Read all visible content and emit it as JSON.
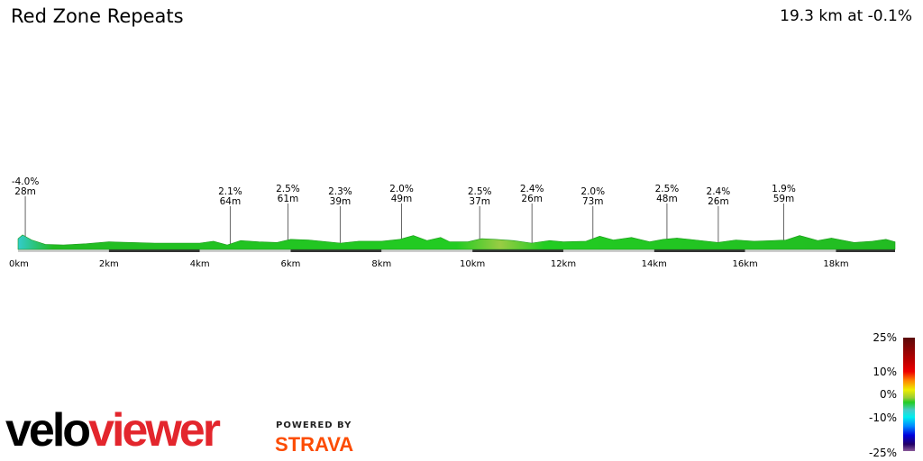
{
  "title": "Red Zone Repeats",
  "summary": "19.3 km at -0.1%",
  "chart_data": {
    "type": "area",
    "title": "Red Zone Repeats",
    "xlabel": "",
    "ylabel": "",
    "xlim": [
      0,
      19.3
    ],
    "x_ticks": [
      {
        "v": 0,
        "label": "0km"
      },
      {
        "v": 2,
        "label": "2km"
      },
      {
        "v": 4,
        "label": "4km"
      },
      {
        "v": 6,
        "label": "6km"
      },
      {
        "v": 8,
        "label": "8km"
      },
      {
        "v": 10,
        "label": "10km"
      },
      {
        "v": 12,
        "label": "12km"
      },
      {
        "v": 14,
        "label": "14km"
      },
      {
        "v": 16,
        "label": "16km"
      },
      {
        "v": 18,
        "label": "18km"
      }
    ],
    "elevation_km": [
      0,
      0.1,
      0.3,
      0.6,
      1,
      1.5,
      2,
      2.5,
      3,
      3.5,
      4,
      4.3,
      4.6,
      4.9,
      5.3,
      5.7,
      6,
      6.4,
      6.8,
      7.1,
      7.5,
      8,
      8.4,
      8.7,
      9,
      9.3,
      9.5,
      9.9,
      10.2,
      10.5,
      10.9,
      11.3,
      11.7,
      12,
      12.5,
      12.8,
      13.1,
      13.5,
      13.9,
      14.2,
      14.5,
      14.9,
      15.4,
      15.8,
      16.2,
      16.6,
      16.9,
      17.2,
      17.6,
      17.9,
      18.4,
      18.8,
      19.1,
      19.3
    ],
    "elevation_m": [
      32,
      38,
      30,
      23,
      22,
      24,
      27,
      26,
      25,
      25,
      25,
      28,
      22,
      29,
      27,
      26,
      31,
      30,
      27,
      25,
      28,
      28,
      31,
      37,
      29,
      34,
      27,
      27,
      32,
      31,
      29,
      25,
      29,
      27,
      28,
      36,
      30,
      34,
      27,
      31,
      33,
      30,
      26,
      30,
      28,
      29,
      30,
      37,
      29,
      33,
      26,
      28,
      31,
      27
    ],
    "climbs": [
      {
        "km": 0.16,
        "grade": "-4.0%",
        "length": "28m"
      },
      {
        "km": 4.67,
        "grade": "2.1%",
        "length": "64m"
      },
      {
        "km": 5.94,
        "grade": "2.5%",
        "length": "61m"
      },
      {
        "km": 7.09,
        "grade": "2.3%",
        "length": "39m"
      },
      {
        "km": 8.44,
        "grade": "2.0%",
        "length": "49m"
      },
      {
        "km": 10.16,
        "grade": "2.5%",
        "length": "37m"
      },
      {
        "km": 11.31,
        "grade": "2.4%",
        "length": "26m"
      },
      {
        "km": 12.65,
        "grade": "2.0%",
        "length": "73m"
      },
      {
        "km": 14.28,
        "grade": "2.5%",
        "length": "48m"
      },
      {
        "km": 15.41,
        "grade": "2.4%",
        "length": "26m"
      },
      {
        "km": 16.85,
        "grade": "1.9%",
        "length": "59m"
      }
    ],
    "colorscale_labels": [
      "25%",
      "10%",
      "0%",
      "-10%",
      "-25%"
    ]
  },
  "logo": {
    "part1": "velo",
    "part2": "viewer"
  },
  "powered_by": "POWERED BY",
  "strava": "STRAVA"
}
